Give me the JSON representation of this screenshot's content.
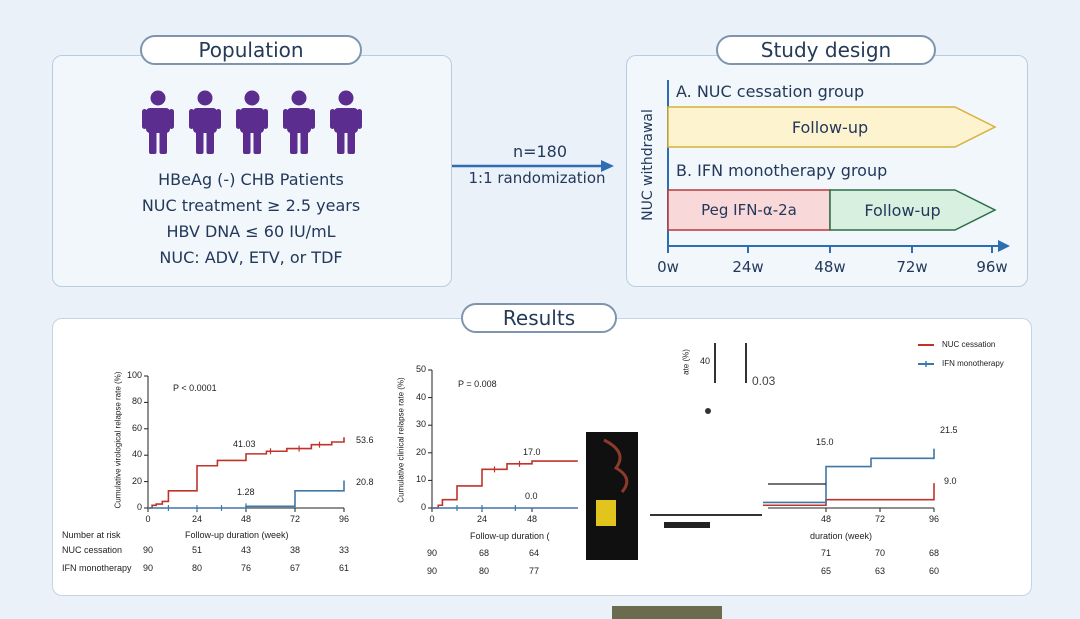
{
  "population": {
    "title": "Population",
    "lines": [
      "HBeAg (-) CHB Patients",
      "NUC treatment ≥ 2.5 years",
      "HBV DNA ≤ 60 IU/mL",
      "NUC: ADV, ETV, or TDF"
    ],
    "person_icon_color": "#5b2d8e"
  },
  "arrow": {
    "n": "n=180",
    "randomization": "1:1 randomization"
  },
  "study_design": {
    "title": "Study design",
    "side_label": "NUC withdrawal",
    "group_a": {
      "label": "A. NUC cessation group",
      "bar": "Follow-up"
    },
    "group_b": {
      "label": "B. IFN monotherapy group",
      "bar1": "Peg IFN-α-2a",
      "bar2": "Follow-up"
    },
    "timeline": [
      "0w",
      "24w",
      "48w",
      "72w",
      "96w"
    ]
  },
  "results": {
    "title": "Results",
    "legend": [
      {
        "name": "NUC cessation",
        "color": "#c0332b"
      },
      {
        "name": "IFN monotherapy",
        "color": "#3f77a8"
      }
    ],
    "chart1": {
      "ylabel": "Cumulative virological relapse rate (%)",
      "yticks": [
        "0",
        "20",
        "40",
        "60",
        "80",
        "100"
      ],
      "xticks": [
        "0",
        "24",
        "48",
        "72",
        "96"
      ],
      "xlabel": "Follow-up duration (week)",
      "pvalue": "P < 0.0001",
      "labels": {
        "nuc48": "41.03",
        "ifn48": "1.28",
        "nuc96": "53.6",
        "ifn96": "20.8"
      },
      "risk_header": "Number at risk",
      "risk_rows": [
        {
          "name": "NUC cessation",
          "values": [
            "90",
            "51",
            "43",
            "38",
            "33"
          ]
        },
        {
          "name": "IFN monotherapy",
          "values": [
            "90",
            "80",
            "76",
            "67",
            "61"
          ]
        }
      ]
    },
    "chart2": {
      "ylabel": "Cumulative clinical relapse rate (%)",
      "yticks": [
        "0",
        "10",
        "20",
        "30",
        "40",
        "50"
      ],
      "xticks": [
        "0",
        "24",
        "48"
      ],
      "xlabel": "Follow-up duration (",
      "pvalue": "P = 0.008",
      "labels": {
        "nuc48": "17.0",
        "ifn48": "0.0"
      },
      "risk_rows": [
        {
          "values": [
            "90",
            "68",
            "64"
          ]
        },
        {
          "values": [
            "90",
            "80",
            "77"
          ]
        }
      ]
    },
    "chart3": {
      "ylabel": "ate (%)",
      "ytick": "40",
      "top_text": "0.03",
      "xticks": [
        "48",
        "72",
        "96"
      ],
      "xlabel": "duration (week)",
      "labels": {
        "ifn48": "15.0",
        "ifn96": "21.5",
        "nuc96": "9.0"
      },
      "risk_rows": [
        {
          "values": [
            "71",
            "70",
            "68"
          ]
        },
        {
          "values": [
            "65",
            "63",
            "60"
          ]
        }
      ]
    }
  }
}
